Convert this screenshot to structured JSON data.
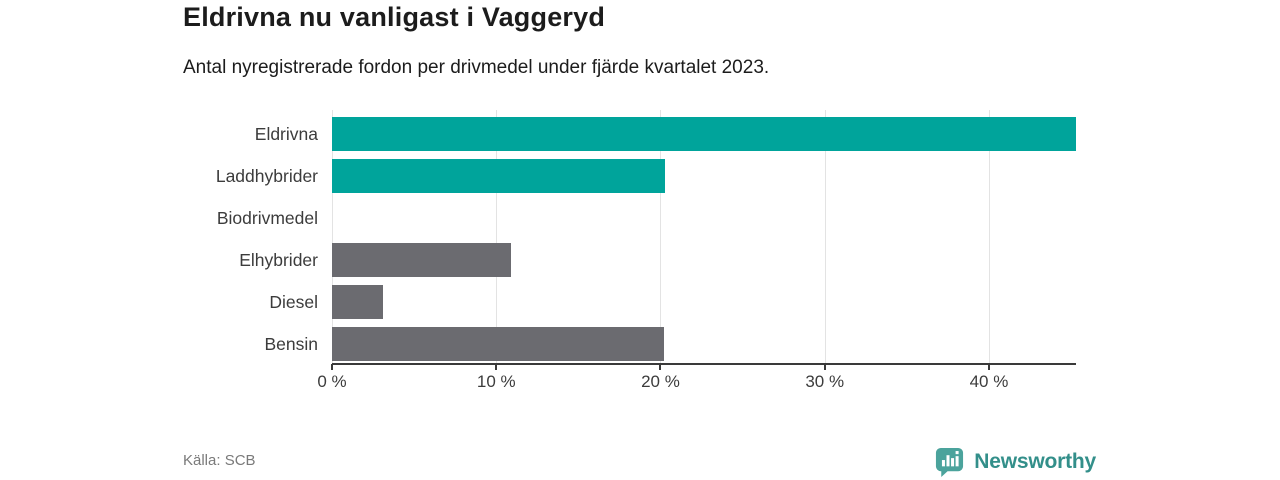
{
  "header": {
    "title": "Eldrivna nu vanligast i Vaggeryd",
    "subtitle": "Antal nyregistrerade fordon per drivmedel under fjärde kvartalet 2023."
  },
  "footer": {
    "source": "Källa: SCB",
    "brand_name": "Newsworthy"
  },
  "colors": {
    "highlight_bar": "#00a49b",
    "neutral_bar": "#6b6b70",
    "gridline": "#e3e3e3",
    "axis_line": "#3a3a3a",
    "text_dark": "#1c1c1c",
    "text_label": "#3c3c3c",
    "text_source": "#7a7a7a",
    "brand_icon": "#4ba39c",
    "brand_text": "#338f8a"
  },
  "chart_data": {
    "type": "bar",
    "orientation": "horizontal",
    "title": "Eldrivna nu vanligast i Vaggeryd",
    "subtitle": "Antal nyregistrerade fordon per drivmedel under fjärde kvartalet 2023.",
    "categories": [
      "Eldrivna",
      "Laddhybrider",
      "Biodrivmedel",
      "Elhybrider",
      "Diesel",
      "Bensin"
    ],
    "values": [
      45.3,
      20.3,
      0,
      10.9,
      3.1,
      20.2
    ],
    "bar_colors": [
      "#00a49b",
      "#00a49b",
      "#6b6b70",
      "#6b6b70",
      "#6b6b70",
      "#6b6b70"
    ],
    "unit": "%",
    "xlim": [
      0,
      45.3
    ],
    "x_ticks": [
      {
        "value": 0,
        "label": "0 %"
      },
      {
        "value": 10,
        "label": "10 %"
      },
      {
        "value": 20,
        "label": "20 %"
      },
      {
        "value": 30,
        "label": "30 %"
      },
      {
        "value": 40,
        "label": "40 %"
      }
    ],
    "grid": "vertical",
    "legend": "none"
  }
}
